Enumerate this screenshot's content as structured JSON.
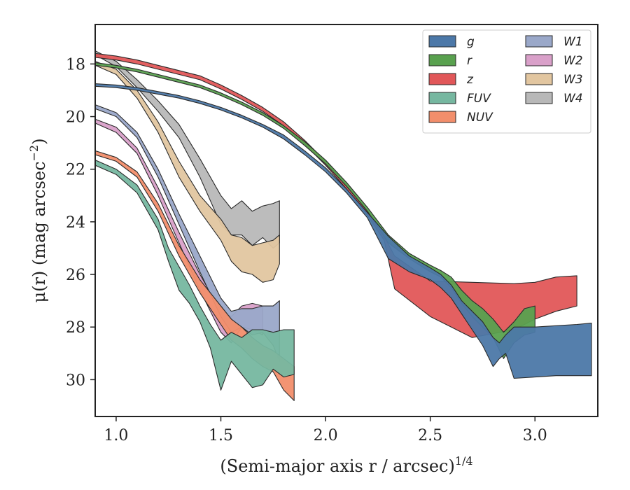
{
  "chart_data": {
    "type": "area",
    "title": "",
    "xlabel": "(Semi-major axis r / arcsec)",
    "xlabel_superscript": "1/4",
    "ylabel": "μ(r) (mag arcsec",
    "ylabel_superscript": "−2",
    "ylabel_suffix": ")",
    "xlim": [
      0.9,
      3.3
    ],
    "ylim": [
      31.4,
      16.5
    ],
    "y_inverted": true,
    "xticks": [
      1.0,
      1.5,
      2.0,
      2.5,
      3.0
    ],
    "xtick_labels": [
      "1.0",
      "1.5",
      "2.0",
      "2.5",
      "3.0"
    ],
    "yticks": [
      18,
      20,
      22,
      24,
      26,
      28,
      30
    ],
    "ytick_labels": [
      "18",
      "20",
      "22",
      "24",
      "26",
      "28",
      "30"
    ],
    "grid": false,
    "legend_position": "top-right",
    "legend_columns": 2,
    "series": [
      {
        "name": "g",
        "color": "#4c78a8",
        "x": [
          0.9,
          1.0,
          1.1,
          1.2,
          1.3,
          1.4,
          1.5,
          1.6,
          1.7,
          1.8,
          1.9,
          2.0,
          2.1,
          2.2,
          2.3,
          2.4,
          2.5,
          2.55,
          2.6,
          2.65,
          2.7,
          2.75,
          2.8,
          2.83,
          2.86,
          2.9,
          3.0,
          3.1,
          3.2,
          3.27
        ],
        "lower": [
          18.75,
          18.8,
          18.9,
          19.05,
          19.2,
          19.4,
          19.65,
          19.95,
          20.3,
          20.7,
          21.3,
          21.95,
          22.75,
          23.65,
          24.55,
          25.3,
          25.75,
          26.0,
          26.4,
          27.0,
          27.4,
          27.8,
          28.4,
          28.6,
          28.3,
          28.0,
          28.0,
          27.95,
          27.9,
          27.85
        ],
        "upper": [
          18.85,
          18.9,
          19.0,
          19.15,
          19.3,
          19.5,
          19.75,
          20.05,
          20.4,
          20.85,
          21.45,
          22.1,
          22.9,
          23.85,
          25.4,
          25.9,
          26.2,
          26.5,
          26.9,
          27.5,
          28.1,
          28.7,
          29.5,
          29.2,
          29.0,
          29.95,
          29.9,
          29.85,
          29.85,
          29.85
        ]
      },
      {
        "name": "r",
        "color": "#59a14f",
        "x": [
          0.9,
          1.0,
          1.1,
          1.2,
          1.3,
          1.4,
          1.5,
          1.6,
          1.7,
          1.8,
          1.9,
          2.0,
          2.1,
          2.2,
          2.3,
          2.4,
          2.5,
          2.55,
          2.6,
          2.65,
          2.7,
          2.75,
          2.8,
          2.85,
          2.9,
          2.95,
          3.0
        ],
        "lower": [
          17.95,
          18.05,
          18.2,
          18.4,
          18.6,
          18.8,
          19.1,
          19.45,
          19.85,
          20.35,
          20.95,
          21.65,
          22.5,
          23.45,
          24.5,
          25.2,
          25.65,
          25.85,
          26.1,
          26.6,
          27.0,
          27.3,
          27.7,
          28.2,
          27.8,
          27.3,
          27.2
        ],
        "upper": [
          18.05,
          18.15,
          18.3,
          18.5,
          18.7,
          18.9,
          19.2,
          19.55,
          19.95,
          20.45,
          21.1,
          21.8,
          22.65,
          23.6,
          24.8,
          25.4,
          25.9,
          26.1,
          26.5,
          27.1,
          27.6,
          28.0,
          28.4,
          29.2,
          28.6,
          28.3,
          28.2
        ]
      },
      {
        "name": "z",
        "color": "#e15759",
        "x": [
          0.9,
          1.0,
          1.1,
          1.2,
          1.3,
          1.4,
          1.5,
          1.6,
          1.7,
          1.8,
          1.9,
          2.0,
          2.1,
          2.2,
          2.28,
          2.33,
          2.5,
          2.7,
          2.9,
          3.0,
          3.1,
          3.2
        ],
        "lower": [
          17.6,
          17.7,
          17.85,
          18.05,
          18.25,
          18.45,
          18.8,
          19.2,
          19.65,
          20.2,
          20.9,
          21.7,
          22.6,
          23.6,
          24.55,
          25.3,
          26.25,
          26.3,
          26.35,
          26.3,
          26.1,
          26.05
        ],
        "upper": [
          17.75,
          17.85,
          18.0,
          18.2,
          18.4,
          18.6,
          18.95,
          19.35,
          19.8,
          20.35,
          21.05,
          21.85,
          22.75,
          23.75,
          24.7,
          26.55,
          27.6,
          28.4,
          28.1,
          27.7,
          27.4,
          27.2
        ]
      },
      {
        "name": "FUV",
        "color": "#76b7a0",
        "x": [
          0.9,
          1.0,
          1.1,
          1.2,
          1.25,
          1.3,
          1.35,
          1.4,
          1.45,
          1.5,
          1.55,
          1.6,
          1.65,
          1.7,
          1.75,
          1.8,
          1.85
        ],
        "lower": [
          21.65,
          22.0,
          22.6,
          23.9,
          25.0,
          25.7,
          26.4,
          27.2,
          27.9,
          28.5,
          28.2,
          28.4,
          28.1,
          28.1,
          28.2,
          28.1,
          28.1
        ],
        "upper": [
          21.85,
          22.2,
          22.9,
          24.3,
          25.5,
          26.6,
          27.1,
          27.8,
          28.8,
          30.4,
          29.3,
          29.8,
          30.3,
          30.2,
          29.6,
          29.9,
          29.8
        ]
      },
      {
        "name": "NUV",
        "color": "#f28e6b",
        "x": [
          0.9,
          1.0,
          1.1,
          1.2,
          1.3,
          1.4,
          1.5,
          1.55,
          1.6,
          1.65,
          1.7,
          1.75,
          1.8,
          1.85
        ],
        "lower": [
          21.3,
          21.55,
          22.1,
          23.3,
          24.9,
          26.2,
          27.2,
          27.7,
          28.0,
          28.4,
          28.7,
          28.9,
          29.2,
          29.5
        ],
        "upper": [
          21.45,
          21.7,
          22.3,
          23.6,
          25.3,
          26.7,
          27.9,
          28.5,
          28.8,
          29.2,
          29.5,
          29.7,
          30.4,
          30.8
        ]
      },
      {
        "name": "W1",
        "color": "#9aa8c9",
        "x": [
          0.9,
          1.0,
          1.1,
          1.2,
          1.3,
          1.4,
          1.5,
          1.55,
          1.6,
          1.65,
          1.7,
          1.75,
          1.78
        ],
        "lower": [
          19.55,
          19.85,
          20.6,
          22.0,
          23.7,
          25.3,
          26.9,
          27.4,
          27.3,
          27.3,
          27.2,
          27.2,
          27.0
        ],
        "upper": [
          19.7,
          20.0,
          20.8,
          22.3,
          24.1,
          25.9,
          27.6,
          28.2,
          28.0,
          28.3,
          28.2,
          28.7,
          29.3
        ]
      },
      {
        "name": "W2",
        "color": "#d9a0c9",
        "x": [
          0.9,
          1.0,
          1.1,
          1.2,
          1.3,
          1.4,
          1.5,
          1.55,
          1.6,
          1.65,
          1.7
        ],
        "lower": [
          20.1,
          20.4,
          21.2,
          22.7,
          24.4,
          26.0,
          27.4,
          27.6,
          27.2,
          27.1,
          27.2
        ],
        "upper": [
          20.25,
          20.6,
          21.4,
          23.0,
          24.8,
          26.6,
          28.2,
          28.6,
          28.0,
          28.1,
          28.3
        ]
      },
      {
        "name": "W3",
        "color": "#e2c6a0",
        "x": [
          0.9,
          1.0,
          1.1,
          1.2,
          1.3,
          1.4,
          1.5,
          1.55,
          1.6,
          1.65,
          1.7,
          1.75,
          1.78
        ],
        "lower": [
          17.9,
          18.2,
          19.0,
          20.2,
          21.7,
          23.0,
          23.9,
          24.5,
          24.6,
          24.9,
          24.8,
          24.7,
          24.5
        ],
        "upper": [
          18.05,
          18.4,
          19.3,
          20.6,
          22.3,
          23.6,
          24.7,
          25.5,
          25.9,
          26.0,
          26.3,
          26.2,
          25.6
        ]
      },
      {
        "name": "W4",
        "color": "#b8b8b8",
        "x": [
          0.9,
          1.0,
          1.1,
          1.2,
          1.3,
          1.4,
          1.5,
          1.55,
          1.6,
          1.65,
          1.7,
          1.75,
          1.78
        ],
        "lower": [
          17.5,
          17.9,
          18.6,
          19.4,
          20.3,
          21.6,
          23.0,
          23.5,
          23.2,
          23.6,
          23.4,
          23.3,
          23.2
        ],
        "upper": [
          17.65,
          18.1,
          18.9,
          19.8,
          20.8,
          22.3,
          24.1,
          24.5,
          24.5,
          24.9,
          24.6,
          25.0,
          24.8
        ]
      }
    ]
  }
}
